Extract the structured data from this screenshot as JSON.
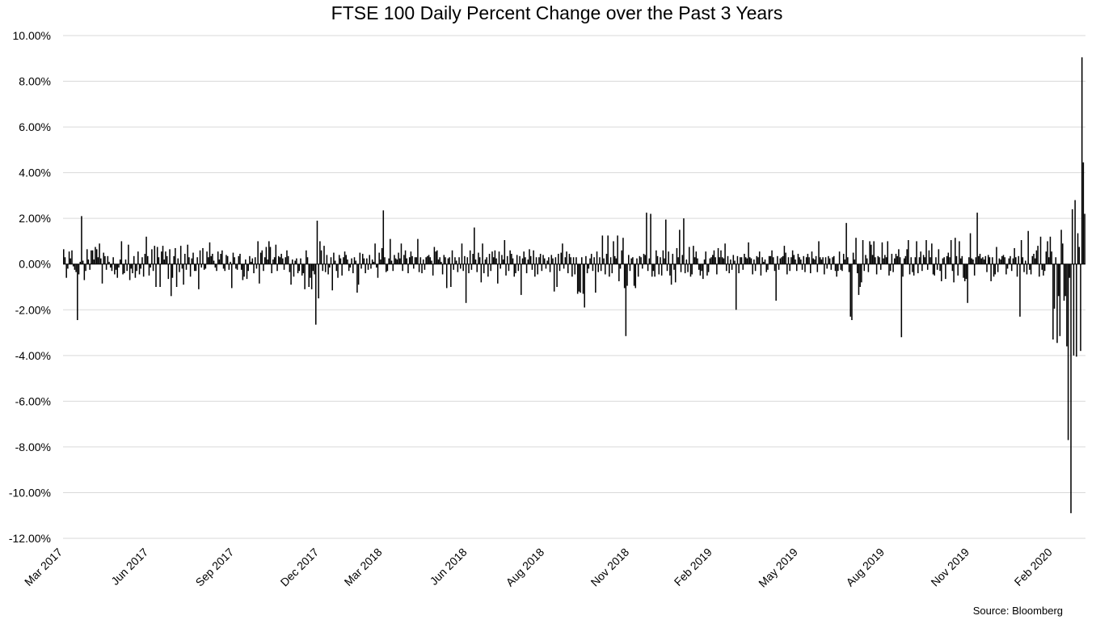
{
  "chart_data": {
    "type": "bar",
    "title": "FTSE 100 Daily Percent Change over the Past 3 Years",
    "source": "Source: Bloomberg",
    "xlabel": "",
    "ylabel": "",
    "x_start": "2017-03-23",
    "x_end": "2020-03-24",
    "ylim": [
      -12,
      10
    ],
    "yticks": [
      10,
      8,
      6,
      4,
      2,
      0,
      -2,
      -4,
      -6,
      -8,
      -10,
      -12
    ],
    "ytick_labels": [
      "10.00%",
      "8.00%",
      "6.00%",
      "4.00%",
      "2.00%",
      "0.00%",
      "-2.00%",
      "-4.00%",
      "-6.00%",
      "-8.00%",
      "-10.00%",
      "-12.00%"
    ],
    "xtick_labels": [
      "Mar 2017",
      "Jun 2017",
      "Sep 2017",
      "Dec 2017",
      "Mar 2018",
      "Jun 2018",
      "Aug 2018",
      "Nov 2018",
      "Feb 2019",
      "May 2019",
      "Aug 2019",
      "Nov 2019",
      "Feb 2020"
    ],
    "xtick_dates": [
      "2017-03-23",
      "2017-06-23",
      "2017-09-23",
      "2017-12-23",
      "2018-03-01",
      "2018-05-31",
      "2018-08-22",
      "2018-11-21",
      "2019-02-18",
      "2019-05-21",
      "2019-08-22",
      "2019-11-21",
      "2020-02-18"
    ],
    "grid": true,
    "legend": "none",
    "bar_color": "#000000",
    "values": [
      0.65,
      0.3,
      -0.6,
      -0.2,
      0.55,
      0.25,
      0.6,
      -0.1,
      -0.25,
      -0.35,
      -2.45,
      -0.45,
      0.1,
      2.1,
      0.15,
      -0.7,
      -0.3,
      0.65,
      0.2,
      -0.25,
      0.6,
      0.6,
      0.2,
      0.75,
      0.65,
      0.3,
      0.9,
      0.25,
      -0.85,
      0.5,
      0.35,
      -0.25,
      0.35,
      0.1,
      -0.15,
      -0.3,
      0.3,
      -0.45,
      -0.25,
      -0.6,
      -0.15,
      0.2,
      1.0,
      -0.45,
      -0.4,
      0.2,
      -0.3,
      0.85,
      -0.7,
      -0.2,
      -0.4,
      0.35,
      -0.6,
      -0.3,
      0.55,
      -0.45,
      -0.2,
      0.3,
      -0.55,
      0.45,
      1.2,
      0.35,
      -0.5,
      -0.15,
      0.65,
      -0.3,
      0.8,
      -1.0,
      0.75,
      0.3,
      -1.0,
      0.55,
      0.8,
      0.2,
      0.55,
      0.35,
      -0.65,
      0.65,
      -1.4,
      -0.6,
      0.35,
      0.7,
      -1.0,
      0.25,
      -0.35,
      0.8,
      -0.2,
      -0.9,
      0.45,
      -0.25,
      0.85,
      0.3,
      -0.55,
      0.25,
      0.5,
      -0.3,
      -0.3,
      0.3,
      -1.1,
      0.6,
      -0.15,
      0.7,
      -0.25,
      -0.2,
      0.55,
      0.3,
      0.95,
      0.35,
      0.45,
      0.15,
      -0.15,
      -0.3,
      0.55,
      0.2,
      0.45,
      0.6,
      -0.2,
      -0.3,
      0.4,
      0.35,
      -0.25,
      0.1,
      -1.05,
      0.5,
      0.3,
      -0.2,
      -0.25,
      0.35,
      0.45,
      -0.25,
      -0.7,
      -0.55,
      0.2,
      -0.65,
      -0.3,
      0.35,
      0.1,
      0.25,
      -0.4,
      0.3,
      -0.2,
      1.0,
      -0.85,
      0.5,
      0.6,
      -0.3,
      0.3,
      0.75,
      0.2,
      1.0,
      0.75,
      -0.4,
      0.2,
      0.3,
      0.85,
      -0.3,
      0.35,
      0.3,
      0.45,
      0.25,
      -0.25,
      0.3,
      0.6,
      0.35,
      -0.35,
      -0.9,
      0.2,
      -0.55,
      0.15,
      0.25,
      -0.4,
      -0.3,
      0.25,
      -0.5,
      -0.4,
      -1.1,
      0.6,
      0.3,
      -1.0,
      -0.6,
      -1.1,
      -0.3,
      -0.45,
      -2.65,
      1.9,
      -1.5,
      1.0,
      0.6,
      -0.3,
      0.8,
      -0.35,
      0.4,
      -0.45,
      -0.15,
      0.3,
      -1.15,
      0.5,
      0.15,
      -0.3,
      -0.6,
      0.4,
      0.25,
      -0.5,
      0.3,
      0.55,
      0.4,
      0.2,
      -0.3,
      -0.15,
      0.25,
      -0.4,
      0.3,
      0.15,
      -1.25,
      -0.9,
      0.5,
      -0.2,
      0.45,
      0.25,
      -0.4,
      0.25,
      -0.25,
      0.4,
      -0.2,
      0.2,
      0.1,
      0.9,
      -0.15,
      -0.6,
      0.5,
      0.2,
      0.7,
      2.35,
      0.3,
      -0.35,
      -0.3,
      0.25,
      1.1,
      0.15,
      -0.3,
      0.4,
      0.25,
      0.2,
      0.5,
      0.25,
      0.9,
      -0.3,
      0.4,
      0.6,
      0.25,
      -0.4,
      0.3,
      0.55,
      0.35,
      -0.2,
      0.3,
      0.3,
      1.1,
      -0.35,
      0.3,
      -0.4,
      0.2,
      -0.25,
      0.3,
      0.35,
      0.4,
      0.3,
      0.15,
      -0.5,
      0.75,
      0.55,
      0.6,
      0.2,
      0.3,
      0.1,
      -0.45,
      0.4,
      0.3,
      -1.05,
      0.25,
      0.3,
      -1.0,
      0.6,
      -0.25,
      0.3,
      0.15,
      -0.35,
      0.3,
      -0.2,
      0.9,
      -0.3,
      0.35,
      -1.7,
      0.3,
      -0.4,
      0.6,
      -0.25,
      0.45,
      1.6,
      0.2,
      -0.35,
      0.5,
      0.3,
      -0.8,
      0.9,
      -0.4,
      0.2,
      0.3,
      -0.55,
      0.45,
      -0.3,
      0.55,
      0.3,
      0.6,
      0.25,
      -0.85,
      0.55,
      -0.2,
      0.4,
      0.2,
      1.05,
      -0.5,
      0.35,
      -0.3,
      0.6,
      0.45,
      0.25,
      -0.55,
      -0.4,
      0.4,
      -0.3,
      0.35,
      -1.35,
      0.25,
      0.55,
      0.3,
      -0.4,
      0.2,
      0.65,
      0.35,
      -0.25,
      0.6,
      -0.55,
      0.3,
      -0.45,
      0.3,
      0.45,
      -0.3,
      0.4,
      0.25,
      -0.2,
      0.15,
      0.3,
      -0.35,
      0.4,
      0.25,
      -1.2,
      0.3,
      -1.0,
      0.45,
      -0.3,
      0.5,
      0.9,
      -0.2,
      0.3,
      0.55,
      -0.4,
      0.45,
      0.3,
      -0.55,
      0.3,
      -0.45,
      0.3,
      -1.3,
      -1.2,
      -1.25,
      0.3,
      -1.3,
      -1.9,
      0.35,
      -0.4,
      -0.2,
      0.25,
      0.45,
      -0.3,
      0.3,
      -1.25,
      0.55,
      -0.35,
      0.3,
      -0.3,
      1.25,
      0.25,
      -0.45,
      0.45,
      1.25,
      -0.55,
      0.3,
      -0.4,
      1.0,
      0.35,
      0.25,
      1.25,
      -0.75,
      -0.2,
      0.6,
      1.15,
      -1.05,
      -3.15,
      -0.95,
      0.4,
      -0.3,
      0.25,
      0.3,
      -0.95,
      -1.05,
      0.25,
      -0.55,
      0.35,
      0.3,
      -0.2,
      0.45,
      0.4,
      2.25,
      -0.3,
      0.25,
      2.2,
      -0.55,
      -0.3,
      -0.55,
      0.6,
      0.35,
      -0.45,
      0.3,
      -0.5,
      0.6,
      0.25,
      1.95,
      -0.3,
      0.55,
      -0.5,
      -0.9,
      0.45,
      -0.25,
      -0.8,
      0.7,
      0.3,
      1.5,
      -0.35,
      0.4,
      2.0,
      -0.4,
      0.2,
      -0.35,
      0.75,
      -0.55,
      -0.45,
      0.8,
      0.3,
      0.55,
      0.25,
      -0.25,
      -0.5,
      -0.3,
      -0.65,
      0.2,
      0.55,
      -0.5,
      -0.35,
      0.25,
      0.3,
      0.4,
      0.6,
      0.3,
      -0.45,
      0.7,
      0.3,
      0.6,
      0.3,
      0.25,
      0.9,
      -0.3,
      0.35,
      -0.4,
      0.2,
      -0.25,
      0.4,
      0.15,
      -2.0,
      0.35,
      -0.4,
      0.3,
      0.3,
      -0.25,
      0.45,
      0.3,
      0.25,
      0.95,
      0.3,
      0.25,
      -0.45,
      0.2,
      -0.3,
      0.35,
      0.3,
      0.55,
      -0.5,
      0.3,
      0.1,
      0.2,
      -0.35,
      -0.25,
      0.35,
      0.35,
      0.6,
      0.3,
      -0.3,
      -1.6,
      0.35,
      -0.25,
      0.25,
      0.3,
      0.35,
      0.8,
      0.5,
      -0.45,
      0.3,
      -0.3,
      0.3,
      0.6,
      0.4,
      0.2,
      -0.3,
      0.45,
      0.3,
      0.2,
      -0.25,
      0.35,
      -0.35,
      0.3,
      0.45,
      0.3,
      -0.4,
      0.55,
      0.25,
      0.2,
      0.35,
      -0.35,
      1.0,
      0.3,
      0.2,
      0.3,
      -0.45,
      0.3,
      -0.2,
      0.35,
      0.25,
      -0.25,
      0.3,
      0.35,
      -0.3,
      -0.55,
      -0.3,
      0.55,
      -0.25,
      -0.3,
      0.45,
      0.2,
      1.8,
      0.3,
      -0.35,
      -2.3,
      -2.45,
      0.5,
      0.2,
      1.15,
      -0.4,
      -1.35,
      -1.0,
      -0.8,
      1.05,
      -0.3,
      0.4,
      0.25,
      -0.35,
      1.0,
      0.85,
      0.4,
      1.0,
      0.3,
      -0.45,
      0.35,
      0.3,
      -0.25,
      0.95,
      0.25,
      0.4,
      0.3,
      1.0,
      -0.5,
      -0.3,
      0.45,
      -0.35,
      0.25,
      0.45,
      0.35,
      0.65,
      0.3,
      -3.2,
      -0.55,
      0.25,
      0.35,
      0.65,
      1.05,
      -0.45,
      0.3,
      -0.35,
      -0.5,
      0.3,
      1.0,
      -0.4,
      0.3,
      0.55,
      -0.3,
      0.4,
      0.3,
      1.05,
      -0.25,
      0.6,
      0.3,
      0.9,
      -0.45,
      -0.5,
      0.3,
      -0.25,
      0.65,
      -0.3,
      -0.75,
      0.25,
      0.3,
      -0.65,
      0.35,
      0.5,
      0.3,
      1.05,
      -0.3,
      -0.8,
      1.15,
      0.35,
      -0.5,
      1.0,
      0.25,
      0.35,
      -0.6,
      -0.75,
      -0.65,
      -1.7,
      0.3,
      1.35,
      0.25,
      0.2,
      -0.5,
      0.3,
      2.25,
      0.35,
      0.45,
      0.25,
      0.3,
      0.2,
      0.35,
      -0.35,
      0.4,
      0.3,
      -0.75,
      0.3,
      -0.55,
      -0.45,
      0.75,
      -0.35,
      0.25,
      0.2,
      0.35,
      0.4,
      0.3,
      -0.45,
      -0.2,
      0.25,
      0.35,
      -0.3,
      0.25,
      0.7,
      0.3,
      -0.55,
      0.35,
      -2.3,
      1.05,
      0.3,
      -0.35,
      0.15,
      -0.45,
      1.45,
      -0.25,
      -0.45,
      0.35,
      0.45,
      0.25,
      0.6,
      0.8,
      -0.55,
      1.2,
      -0.25,
      -0.5,
      -0.3,
      0.55,
      1.0,
      0.3,
      1.2,
      0.55,
      -3.3,
      -1.95,
      0.3,
      -3.45,
      -1.4,
      -3.15,
      1.5,
      0.9,
      -1.6,
      -1.4,
      -3.6,
      -7.7,
      -0.6,
      -10.9,
      2.4,
      -4.0,
      2.8,
      -4.05,
      1.35,
      0.75,
      -3.8,
      9.05,
      4.45,
      2.2
    ]
  }
}
